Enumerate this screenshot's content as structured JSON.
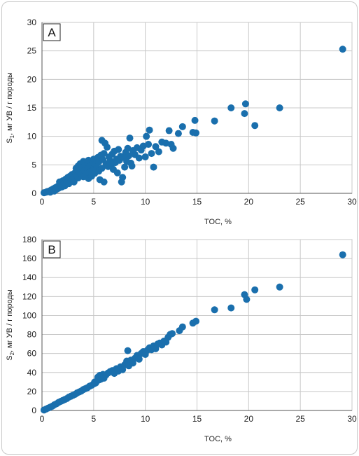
{
  "chart_data": [
    {
      "type": "scatter",
      "panel_label": "A",
      "xlabel": "TOC, %",
      "ylabel_symbol": "S",
      "ylabel_sub": "1",
      "ylabel_rest": ", мг УВ / г породы",
      "xlim": [
        0,
        30
      ],
      "ylim": [
        0,
        30
      ],
      "xticks": [
        0,
        5,
        10,
        15,
        20,
        25,
        30
      ],
      "yticks": [
        0,
        5,
        10,
        15,
        20,
        25,
        30
      ],
      "grid": true,
      "color": "#1a6fad",
      "points": [
        [
          0.2,
          0.1
        ],
        [
          0.4,
          0.2
        ],
        [
          0.5,
          0.3
        ],
        [
          0.7,
          0.4
        ],
        [
          0.8,
          0.2
        ],
        [
          0.9,
          0.6
        ],
        [
          1.0,
          0.5
        ],
        [
          1.1,
          0.8
        ],
        [
          1.2,
          0.4
        ],
        [
          1.3,
          1.0
        ],
        [
          1.4,
          0.7
        ],
        [
          1.5,
          1.2
        ],
        [
          1.6,
          0.9
        ],
        [
          1.7,
          2.0
        ],
        [
          1.8,
          1.5
        ],
        [
          1.9,
          1.1
        ],
        [
          2.0,
          2.2
        ],
        [
          2.1,
          1.6
        ],
        [
          2.2,
          1.3
        ],
        [
          2.3,
          2.5
        ],
        [
          2.4,
          1.9
        ],
        [
          2.5,
          2.8
        ],
        [
          2.6,
          1.7
        ],
        [
          2.7,
          3.0
        ],
        [
          2.8,
          2.2
        ],
        [
          2.9,
          3.3
        ],
        [
          3.0,
          2.6
        ],
        [
          3.1,
          2.0
        ],
        [
          3.2,
          3.6
        ],
        [
          3.3,
          4.4
        ],
        [
          3.4,
          3.1
        ],
        [
          3.5,
          2.7
        ],
        [
          3.5,
          4.8
        ],
        [
          3.6,
          3.9
        ],
        [
          3.7,
          5.2
        ],
        [
          3.8,
          3.4
        ],
        [
          3.9,
          4.6
        ],
        [
          4.0,
          2.9
        ],
        [
          4.0,
          5.6
        ],
        [
          4.1,
          4.0
        ],
        [
          4.2,
          3.2
        ],
        [
          4.3,
          5.0
        ],
        [
          4.4,
          4.3
        ],
        [
          4.5,
          2.6
        ],
        [
          4.5,
          5.8
        ],
        [
          4.6,
          3.7
        ],
        [
          4.7,
          4.9
        ],
        [
          4.8,
          3.0
        ],
        [
          4.9,
          5.4
        ],
        [
          5.0,
          4.2
        ],
        [
          5.0,
          6.0
        ],
        [
          5.1,
          3.5
        ],
        [
          5.2,
          5.1
        ],
        [
          5.3,
          4.6
        ],
        [
          5.4,
          6.3
        ],
        [
          5.5,
          3.9
        ],
        [
          5.5,
          5.5
        ],
        [
          5.6,
          2.4
        ],
        [
          5.7,
          6.7
        ],
        [
          5.8,
          4.4
        ],
        [
          5.8,
          9.3
        ],
        [
          5.9,
          5.9
        ],
        [
          6.0,
          2.0
        ],
        [
          6.0,
          7.0
        ],
        [
          6.1,
          8.8
        ],
        [
          6.2,
          5.2
        ],
        [
          6.3,
          8.1
        ],
        [
          6.4,
          4.7
        ],
        [
          6.5,
          6.4
        ],
        [
          6.6,
          5.7
        ],
        [
          6.7,
          5.0
        ],
        [
          6.8,
          6.9
        ],
        [
          6.9,
          4.2
        ],
        [
          7.0,
          7.4
        ],
        [
          7.1,
          5.4
        ],
        [
          7.2,
          6.0
        ],
        [
          7.3,
          3.6
        ],
        [
          7.4,
          7.7
        ],
        [
          7.5,
          5.8
        ],
        [
          7.6,
          6.5
        ],
        [
          7.7,
          2.0
        ],
        [
          7.8,
          2.8
        ],
        [
          7.9,
          6.3
        ],
        [
          8.0,
          4.6
        ],
        [
          8.1,
          7.2
        ],
        [
          8.2,
          5.6
        ],
        [
          8.3,
          7.9
        ],
        [
          8.4,
          6.6
        ],
        [
          8.5,
          9.7
        ],
        [
          8.6,
          5.3
        ],
        [
          8.7,
          4.8
        ],
        [
          8.8,
          7.5
        ],
        [
          9.0,
          6.8
        ],
        [
          9.2,
          8.0
        ],
        [
          9.4,
          6.2
        ],
        [
          9.6,
          7.6
        ],
        [
          9.8,
          8.3
        ],
        [
          10.0,
          6.4
        ],
        [
          10.1,
          10.0
        ],
        [
          10.3,
          8.6
        ],
        [
          10.4,
          11.1
        ],
        [
          10.6,
          7.0
        ],
        [
          10.8,
          4.6
        ],
        [
          11.0,
          8.2
        ],
        [
          11.3,
          7.3
        ],
        [
          11.6,
          9.0
        ],
        [
          12.0,
          8.8
        ],
        [
          12.3,
          11.0
        ],
        [
          12.5,
          8.6
        ],
        [
          12.7,
          7.9
        ],
        [
          13.2,
          10.5
        ],
        [
          13.6,
          11.7
        ],
        [
          14.6,
          10.7
        ],
        [
          14.9,
          10.6
        ],
        [
          14.8,
          12.8
        ],
        [
          16.7,
          12.7
        ],
        [
          18.3,
          15.0
        ],
        [
          19.6,
          14.0
        ],
        [
          19.7,
          15.7
        ],
        [
          20.6,
          11.9
        ],
        [
          23.0,
          15.0
        ],
        [
          29.1,
          25.3
        ]
      ]
    },
    {
      "type": "scatter",
      "panel_label": "B",
      "xlabel": "TOC, %",
      "ylabel_symbol": "S",
      "ylabel_sub": "2",
      "ylabel_rest": ", мг УВ / г породы",
      "xlim": [
        0,
        30
      ],
      "ylim": [
        0,
        180
      ],
      "xticks": [
        0,
        5,
        10,
        15,
        20,
        25,
        30
      ],
      "yticks": [
        0,
        20,
        40,
        60,
        80,
        100,
        120,
        140,
        160,
        180
      ],
      "grid": true,
      "color": "#1a6fad",
      "points": [
        [
          0.2,
          0.5
        ],
        [
          0.4,
          1.5
        ],
        [
          0.6,
          2.5
        ],
        [
          0.8,
          3.5
        ],
        [
          1.0,
          4.5
        ],
        [
          1.2,
          6.0
        ],
        [
          1.4,
          7.0
        ],
        [
          1.6,
          8.5
        ],
        [
          1.8,
          9.5
        ],
        [
          2.0,
          10.5
        ],
        [
          2.2,
          11.5
        ],
        [
          2.4,
          12.5
        ],
        [
          2.6,
          14.0
        ],
        [
          2.8,
          15.0
        ],
        [
          3.0,
          16.0
        ],
        [
          3.2,
          17.0
        ],
        [
          3.4,
          18.5
        ],
        [
          3.6,
          19.5
        ],
        [
          3.8,
          20.5
        ],
        [
          4.0,
          22.0
        ],
        [
          4.2,
          23.0
        ],
        [
          4.4,
          24.0
        ],
        [
          4.6,
          25.5
        ],
        [
          4.8,
          26.5
        ],
        [
          5.0,
          28.0
        ],
        [
          5.1,
          30.0
        ],
        [
          5.2,
          29.0
        ],
        [
          5.3,
          31.0
        ],
        [
          5.4,
          35.0
        ],
        [
          5.5,
          32.0
        ],
        [
          5.6,
          37.0
        ],
        [
          5.7,
          33.0
        ],
        [
          5.8,
          36.0
        ],
        [
          5.9,
          38.0
        ],
        [
          6.0,
          34.0
        ],
        [
          6.2,
          37.5
        ],
        [
          6.4,
          39.5
        ],
        [
          6.6,
          41.0
        ],
        [
          6.8,
          42.0
        ],
        [
          7.0,
          39.0
        ],
        [
          7.2,
          44.0
        ],
        [
          7.4,
          41.5
        ],
        [
          7.6,
          46.0
        ],
        [
          7.8,
          43.0
        ],
        [
          8.0,
          48.0
        ],
        [
          8.2,
          52.0
        ],
        [
          8.3,
          63.0
        ],
        [
          8.4,
          47.0
        ],
        [
          8.6,
          53.0
        ],
        [
          8.8,
          50.0
        ],
        [
          9.0,
          55.0
        ],
        [
          9.2,
          58.0
        ],
        [
          9.4,
          54.0
        ],
        [
          9.6,
          60.0
        ],
        [
          9.8,
          62.0
        ],
        [
          10.0,
          59.0
        ],
        [
          10.2,
          63.5
        ],
        [
          10.4,
          66.0
        ],
        [
          10.6,
          64.0
        ],
        [
          10.8,
          68.0
        ],
        [
          11.0,
          65.0
        ],
        [
          11.2,
          70.0
        ],
        [
          11.4,
          71.0
        ],
        [
          11.6,
          69.0
        ],
        [
          11.8,
          73.0
        ],
        [
          12.0,
          72.0
        ],
        [
          12.2,
          77.0
        ],
        [
          12.4,
          80.0
        ],
        [
          12.6,
          81.0
        ],
        [
          13.3,
          84.0
        ],
        [
          13.6,
          88.0
        ],
        [
          14.6,
          92.0
        ],
        [
          14.9,
          94.0
        ],
        [
          16.7,
          106.0
        ],
        [
          18.3,
          108.0
        ],
        [
          19.6,
          122.0
        ],
        [
          19.8,
          117.0
        ],
        [
          20.6,
          127.0
        ],
        [
          23.0,
          130.0
        ],
        [
          29.1,
          164.0
        ]
      ]
    }
  ]
}
